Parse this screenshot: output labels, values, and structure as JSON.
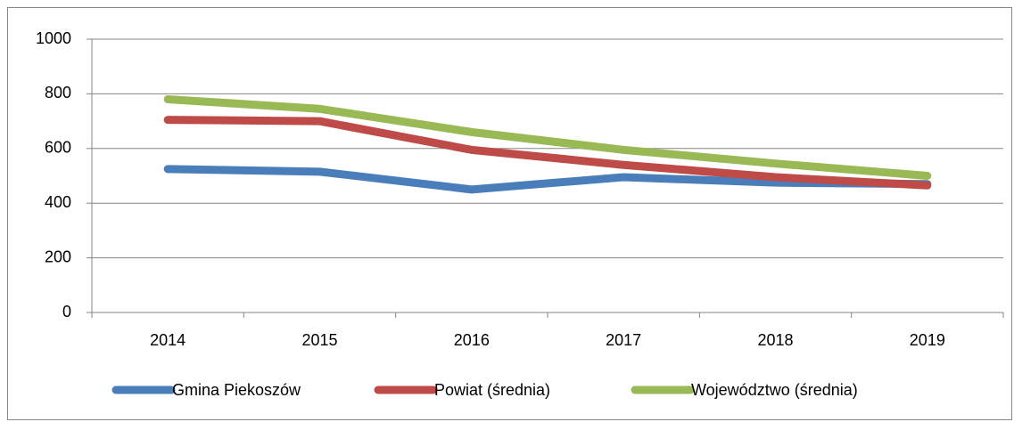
{
  "chart_data": {
    "type": "line",
    "categories": [
      "2014",
      "2015",
      "2016",
      "2017",
      "2018",
      "2019"
    ],
    "series": [
      {
        "name": "Gmina Piekoszów",
        "color": "#4a7ebb",
        "values": [
          525,
          515,
          450,
          495,
          475,
          470
        ]
      },
      {
        "name": "Powiat (średnia)",
        "color": "#be4b48",
        "values": [
          705,
          700,
          595,
          540,
          495,
          465
        ]
      },
      {
        "name": "Województwo (średnia)",
        "color": "#98b954",
        "values": [
          780,
          745,
          660,
          595,
          545,
          500
        ]
      }
    ],
    "ylim": [
      0,
      1000
    ],
    "yticks": [
      0,
      200,
      400,
      600,
      800,
      1000
    ],
    "grid": true,
    "legend": "bottom"
  }
}
